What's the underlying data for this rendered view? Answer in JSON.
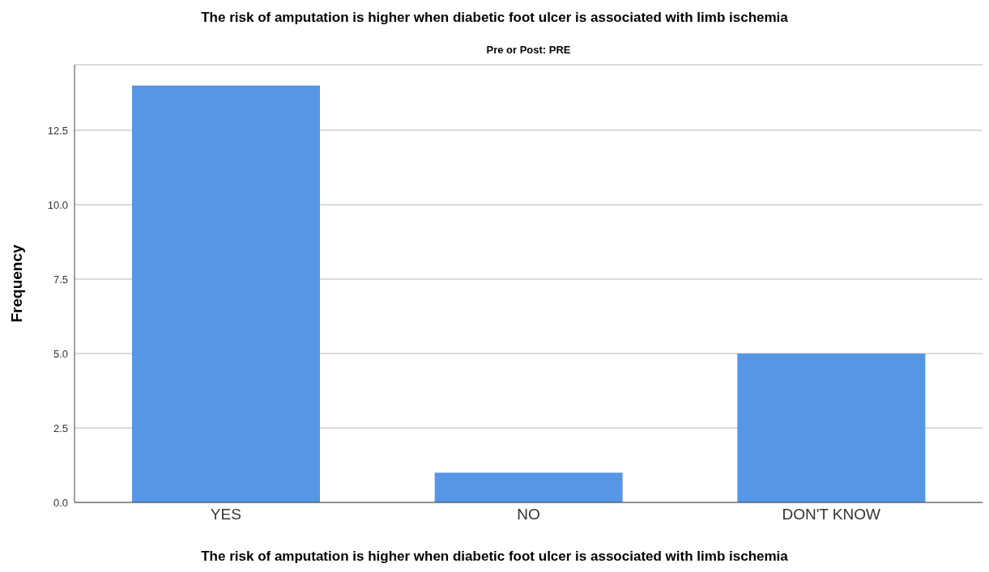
{
  "chart_data": {
    "type": "bar",
    "title": "The risk of amputation is higher when diabetic foot ulcer is associated with limb ischemia",
    "subtitle": "Pre or Post: PRE",
    "xlabel": "The risk of amputation is higher when diabetic foot ulcer is associated with limb ischemia",
    "ylabel": "Frequency",
    "categories": [
      "YES",
      "NO",
      "DON'T KNOW"
    ],
    "values": [
      14,
      1,
      5
    ],
    "color": "#5596e5",
    "ylim": [
      0,
      14.7
    ],
    "yticks": [
      {
        "value": 0,
        "label": "0.0"
      },
      {
        "value": 2.5,
        "label": "2.5"
      },
      {
        "value": 5,
        "label": "5.0"
      },
      {
        "value": 7.5,
        "label": "7.5"
      },
      {
        "value": 10,
        "label": "10.0"
      },
      {
        "value": 12.5,
        "label": "12.5"
      }
    ],
    "grid": "y"
  }
}
